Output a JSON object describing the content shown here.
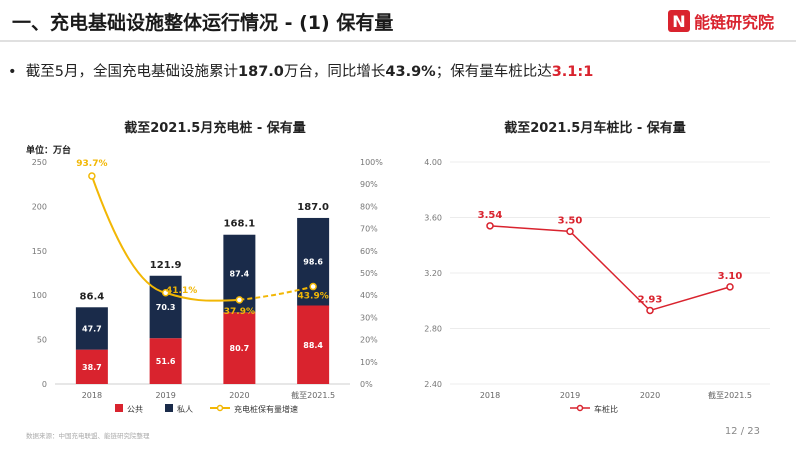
{
  "header": {
    "title": "一、充电基础设施整体运行情况 - (1) 保有量",
    "brand_mark": "N",
    "brand_name": "能链研究院"
  },
  "bullet": {
    "prefix": "截至5月，全国充电基础设施累计",
    "value1": "187.0",
    "mid1": "万台，同比增长",
    "value2": "43.9%",
    "mid2": "；保有量车桩比达",
    "value3": "3.1:1"
  },
  "unit_label": "单位：万台",
  "source": "数据来源：中国充电联盟、能链研究院整理",
  "page_number": "12 / 23",
  "colors": {
    "public": "#d9232e",
    "private": "#1a2b4a",
    "growth": "#f2b705",
    "ratio": "#d9232e"
  },
  "chart_data": [
    {
      "type": "bar",
      "title": "截至2021.5月充电桩 - 保有量",
      "categories": [
        "2018",
        "2019",
        "2020",
        "截至2021.5"
      ],
      "stacked": true,
      "series": [
        {
          "name": "公共",
          "values": [
            38.7,
            51.6,
            80.7,
            88.4
          ]
        },
        {
          "name": "私人",
          "values": [
            47.7,
            70.3,
            87.4,
            98.6
          ]
        }
      ],
      "totals": [
        "86.4",
        "121.9",
        "168.1",
        "187.0"
      ],
      "line_series": {
        "name": "充电桩保有量增速",
        "values": [
          93.7,
          41.1,
          37.9,
          43.9
        ],
        "labels": [
          "93.7%",
          "41.1%",
          "37.9%",
          "43.9%"
        ]
      },
      "y_left_ticks": [
        "0",
        "50",
        "100",
        "150",
        "200",
        "250"
      ],
      "ylim": [
        0,
        250
      ],
      "y_right_ticks": [
        "0%",
        "10%",
        "20%",
        "30%",
        "40%",
        "50%",
        "60%",
        "70%",
        "80%",
        "90%",
        "100%"
      ],
      "y2lim": [
        0,
        100
      ]
    },
    {
      "type": "line",
      "title": "截至2021.5月车桩比 - 保有量",
      "categories": [
        "2018",
        "2019",
        "2020",
        "截至2021.5"
      ],
      "series": [
        {
          "name": "车桩比",
          "values": [
            3.54,
            3.5,
            2.93,
            3.1
          ],
          "labels": [
            "3.54",
            "3.50",
            "2.93",
            "3.10"
          ]
        }
      ],
      "y_ticks": [
        "2.40",
        "2.80",
        "3.20",
        "3.60",
        "4.00"
      ],
      "ylim": [
        2.4,
        4.0
      ]
    }
  ]
}
